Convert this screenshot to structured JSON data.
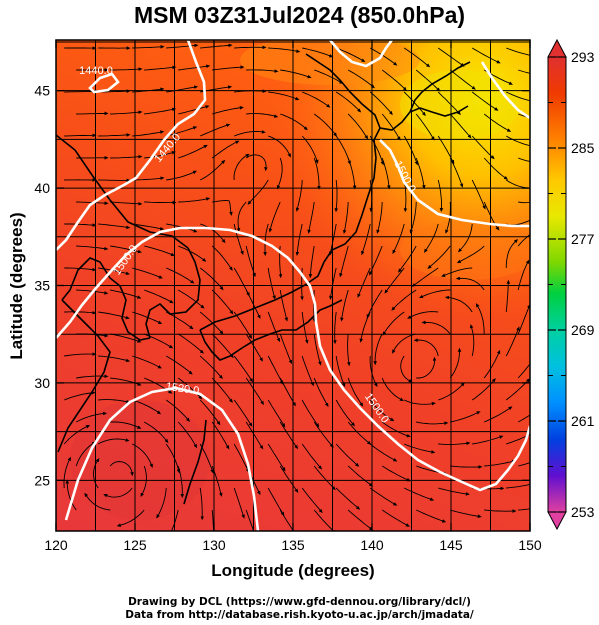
{
  "title": "MSM 03Z31Jul2024 (850.0hPa)",
  "axes": {
    "xlabel": "Longitude (degrees)",
    "ylabel": "Latitude  (degrees)",
    "xlim": [
      120,
      150
    ],
    "ylim": [
      22.4,
      47.6
    ],
    "xticks": [
      "120",
      "125",
      "130",
      "135",
      "140",
      "145",
      "150"
    ],
    "yticks": [
      "25",
      "30",
      "35",
      "40",
      "45"
    ]
  },
  "colorbar": {
    "min": 253,
    "max": 293,
    "labels": [
      "293",
      "285",
      "277",
      "269",
      "261",
      "253"
    ],
    "colors": [
      "#e0409a",
      "#a000c8",
      "#4020d8",
      "#0050e8",
      "#0098ff",
      "#00c8e0",
      "#00d8a0",
      "#00d040",
      "#50d800",
      "#b0e000",
      "#f0e800",
      "#ffb000",
      "#ff6000",
      "#f03000",
      "#e03030"
    ]
  },
  "contours": {
    "labels": [
      "1440.0",
      "1440.0",
      "1500.0",
      "1500.0",
      "1500.0",
      "1520.0"
    ]
  },
  "credits": {
    "line1": "Drawing by DCL (https://www.gfd-dennou.org/library/dcl/)",
    "line2": "Data from http://database.rish.kyoto-u.ac.jp/arch/jmadata/"
  }
}
